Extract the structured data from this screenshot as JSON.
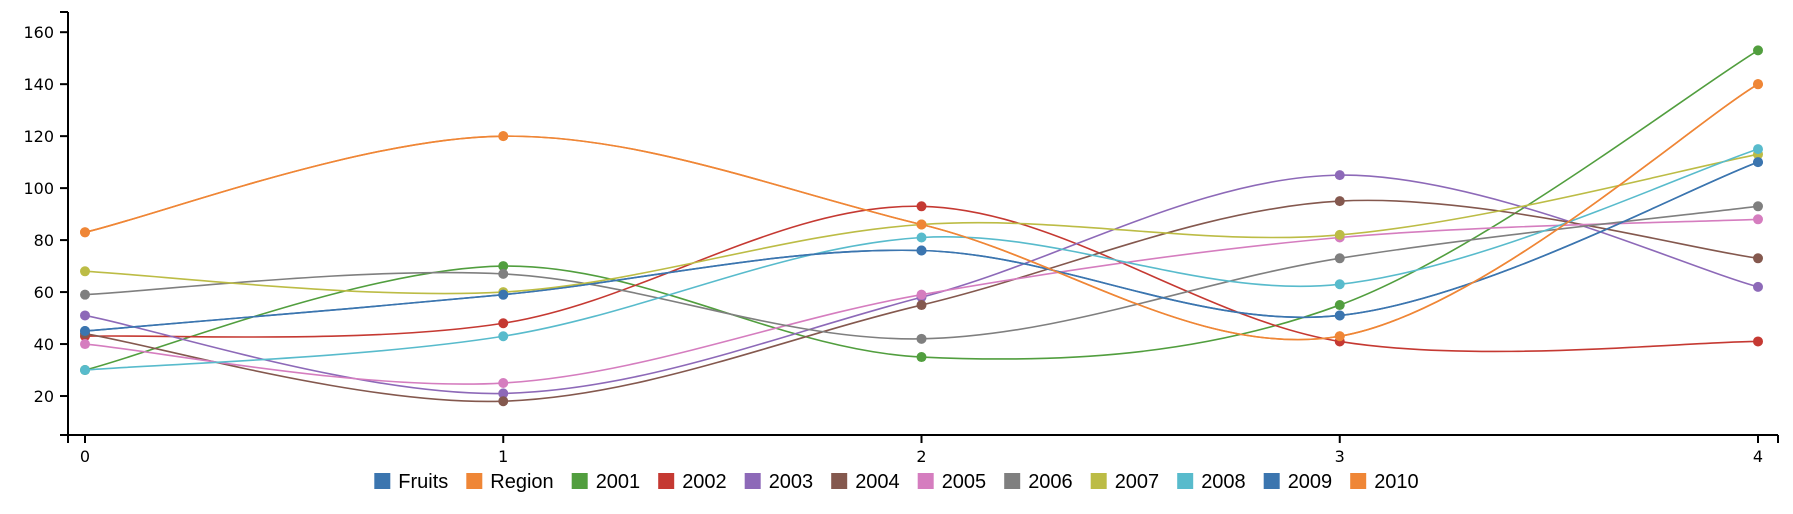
{
  "chart_data": {
    "type": "line",
    "smooth": true,
    "x": [
      0,
      1,
      2,
      3,
      4
    ],
    "x_ticks": [
      "0",
      "1",
      "2",
      "3",
      "4"
    ],
    "y_ticks": [
      "20",
      "40",
      "60",
      "80",
      "100",
      "120",
      "140",
      "160"
    ],
    "ylim": [
      5,
      167
    ],
    "xlim": [
      0,
      4
    ],
    "grid": false,
    "legend_position": "bottom",
    "series": [
      {
        "name": "Fruits",
        "color": "#3b75af",
        "values": [
          45,
          59,
          76,
          51,
          110
        ]
      },
      {
        "name": "Region",
        "color": "#ef8636",
        "values": [
          83,
          120,
          86,
          43,
          140
        ]
      },
      {
        "name": "2001",
        "color": "#519e3e",
        "values": [
          30,
          70,
          35,
          55,
          153
        ]
      },
      {
        "name": "2002",
        "color": "#c53932",
        "values": [
          43,
          48,
          93,
          41,
          41
        ]
      },
      {
        "name": "2003",
        "color": "#8d69b8",
        "values": [
          51,
          21,
          58,
          105,
          62
        ]
      },
      {
        "name": "2004",
        "color": "#84584e",
        "values": [
          44,
          18,
          55,
          95,
          73
        ]
      },
      {
        "name": "2005",
        "color": "#d57dbf",
        "values": [
          40,
          25,
          59,
          81,
          88
        ]
      },
      {
        "name": "2006",
        "color": "#7f7f7f",
        "values": [
          59,
          67,
          42,
          73,
          93
        ]
      },
      {
        "name": "2007",
        "color": "#bcbc45",
        "values": [
          68,
          60,
          86,
          82,
          113
        ]
      },
      {
        "name": "2008",
        "color": "#58bbcc",
        "values": [
          30,
          43,
          81,
          63,
          115
        ]
      },
      {
        "name": "2009",
        "color": "#3b75af",
        "values": [
          45,
          59,
          76,
          51,
          110
        ]
      },
      {
        "name": "2010",
        "color": "#ef8636",
        "values": [
          83,
          120,
          86,
          43,
          140
        ]
      }
    ]
  }
}
